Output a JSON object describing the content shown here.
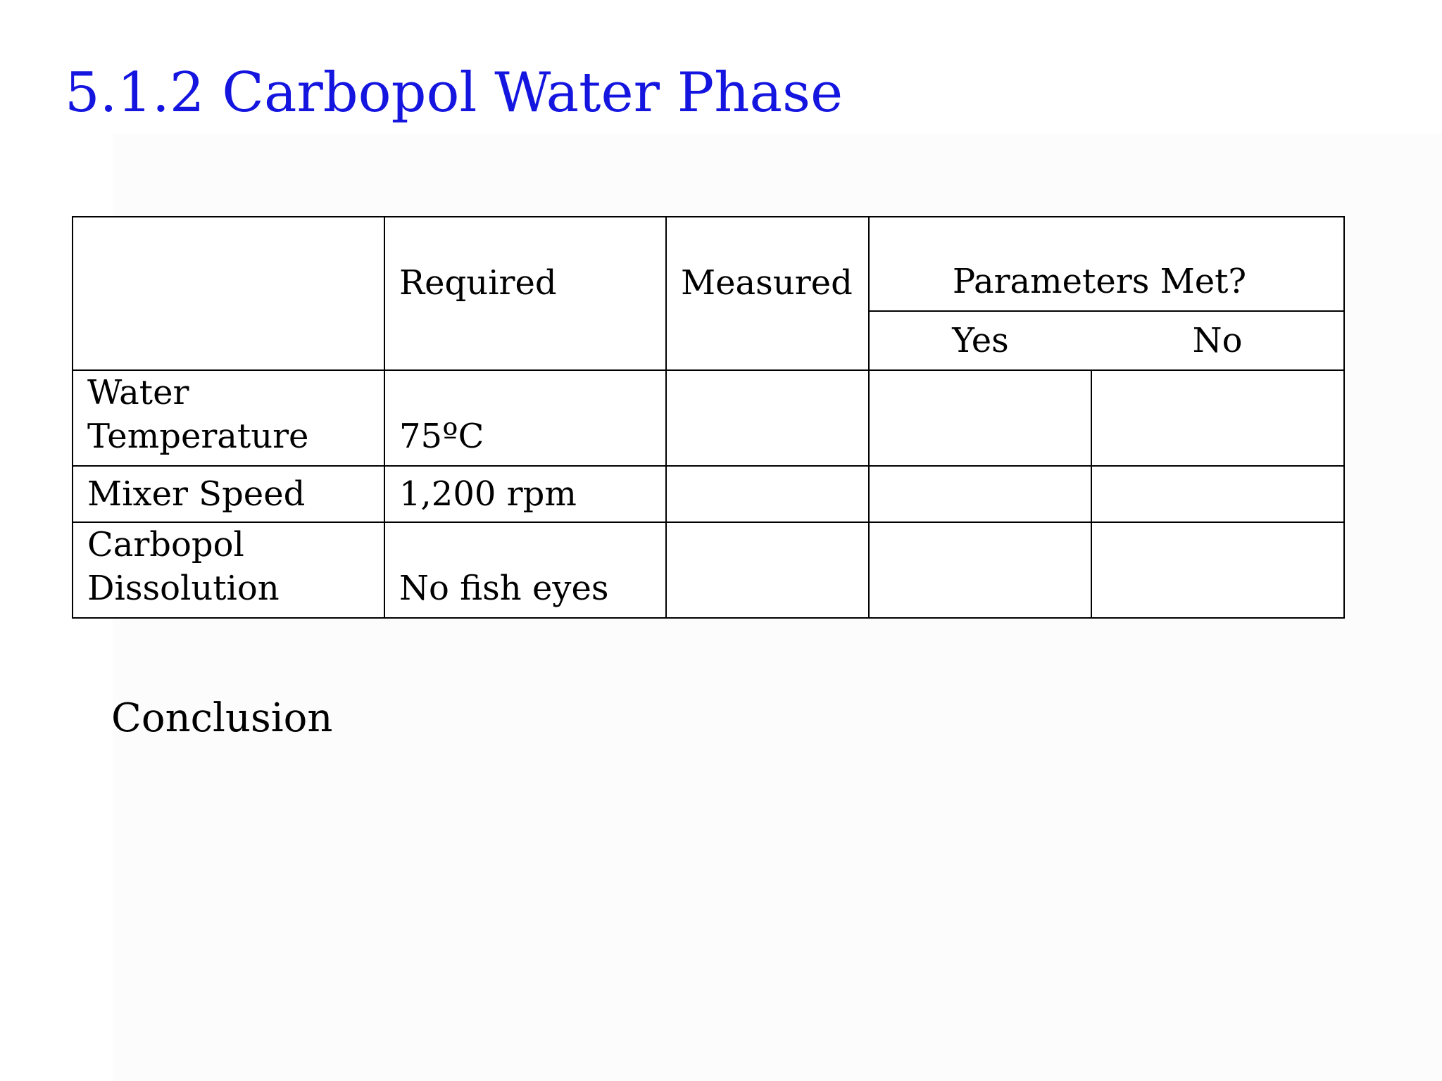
{
  "slide": {
    "title": "5.1.2 Carbopol Water Phase",
    "title_color": "#1515e0",
    "conclusion_label": "Conclusion"
  },
  "table": {
    "headers": {
      "parameter": "",
      "required": "Required",
      "measured": "Measured",
      "parameters_met": "Parameters Met?",
      "yes": "Yes",
      "no": "No"
    },
    "rows": [
      {
        "parameter_line1": "Water",
        "parameter_line2": "Temperature",
        "required": "75ºC",
        "measured": "",
        "yes": "",
        "no": ""
      },
      {
        "parameter_line1": "Mixer Speed",
        "parameter_line2": "",
        "required": "1,200 rpm",
        "measured": "",
        "yes": "",
        "no": ""
      },
      {
        "parameter_line1": "Carbopol",
        "parameter_line2": "Dissolution",
        "required": "No fish eyes",
        "measured": "",
        "yes": "",
        "no": ""
      }
    ]
  }
}
